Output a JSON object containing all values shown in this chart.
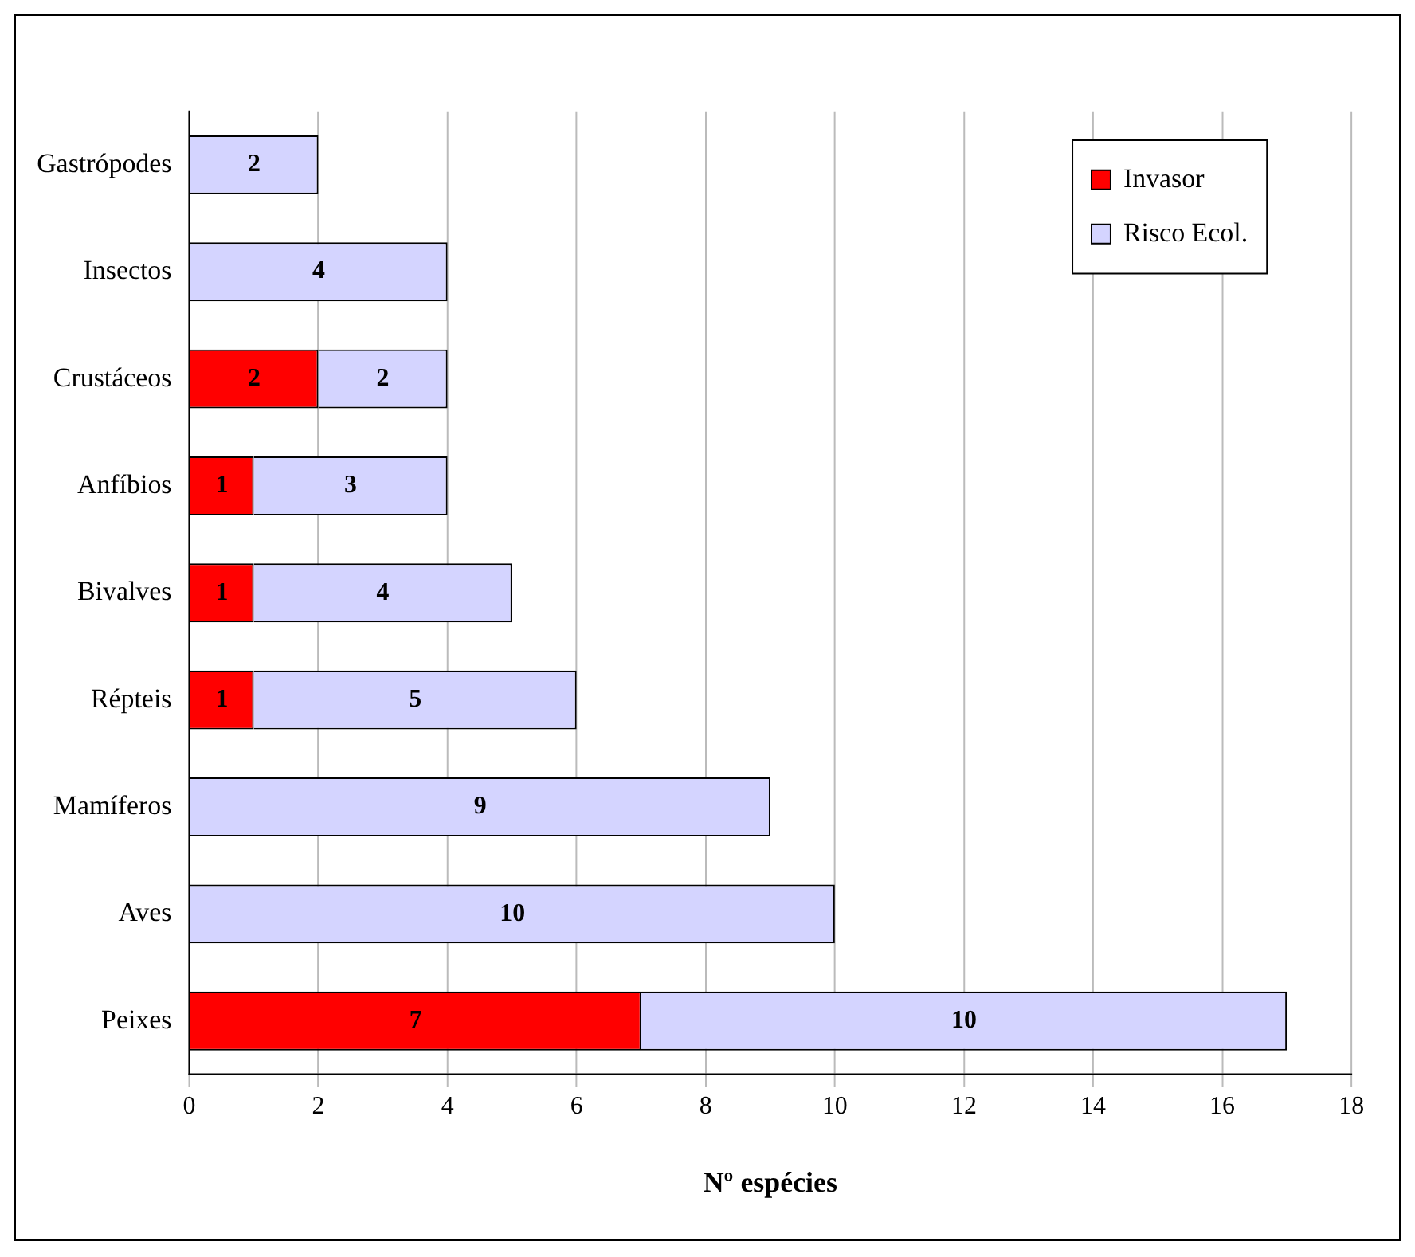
{
  "chart_data": {
    "type": "bar",
    "orientation": "horizontal",
    "stacked": true,
    "xlabel": "Nº espécies",
    "categories": [
      "Gastrópodes",
      "Insectos",
      "Crustáceos",
      "Anfíbios",
      "Bivalves",
      "Répteis",
      "Mamíferos",
      "Aves",
      "Peixes"
    ],
    "series": [
      {
        "name": "Invasor",
        "color": "#ff0000",
        "values": [
          null,
          null,
          2,
          1,
          1,
          1,
          null,
          null,
          7
        ]
      },
      {
        "name": "Risco Ecol.",
        "color": "#d4d4ff",
        "values": [
          2,
          4,
          2,
          3,
          4,
          5,
          9,
          10,
          10
        ]
      }
    ],
    "xlim": [
      0,
      18
    ],
    "xticks": [
      0,
      2,
      4,
      6,
      8,
      10,
      12,
      14,
      16,
      18
    ],
    "grid": "x",
    "legend": "top right",
    "data_labels": true
  }
}
